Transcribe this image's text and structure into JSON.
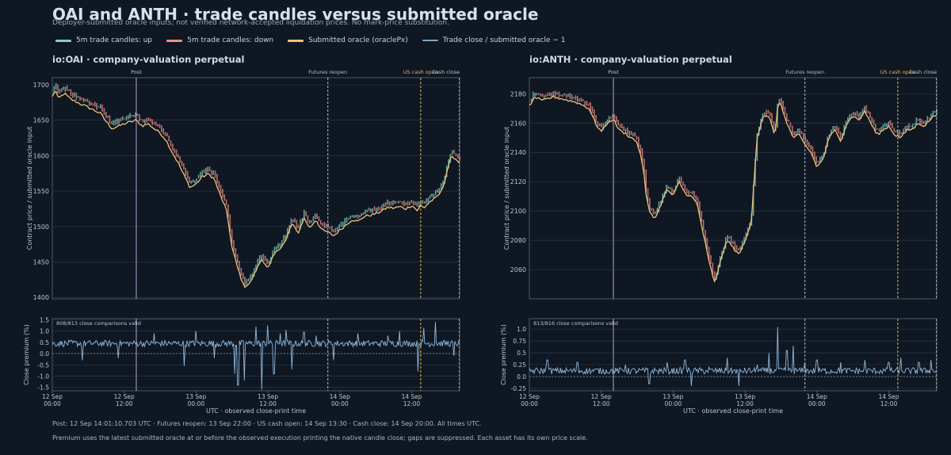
{
  "title": "OAI and ANTH · trade candles versus submitted oracle",
  "subtitle": "Deployer-submitted oracle inputs; not verified network-accepted liquidation prices. No mark-price substitution.",
  "legend": [
    {
      "label": "5m trade candles: up",
      "color": "#7fd1c3"
    },
    {
      "label": "5m trade candles: down",
      "color": "#f08d8a"
    },
    {
      "label": "Submitted oracle (oraclePx)",
      "color": "#f2c27b"
    },
    {
      "label": "Trade close / submitted oracle − 1",
      "color": "#7ea6c9"
    }
  ],
  "colors": {
    "background": "#0f1722",
    "grid": "#25384d",
    "axis": "#5b6b7b",
    "post_line": "#b7a3d6",
    "futures_line": "#a7c0d8",
    "cash_open_line": "#e0b65e",
    "cash_close_line": "#8fa0b0",
    "premium": "#8fb8dc"
  },
  "panels": [
    {
      "title": "io:OAI · company-valuation perpetual",
      "valid_note": "808/813 close comparisons valid"
    },
    {
      "title": "io:ANTH · company-valuation perpetual",
      "valid_note": "813/816 close comparisons valid"
    }
  ],
  "events": {
    "post": "Post",
    "futures": "Futures reopen",
    "cash_open": "US cash open",
    "cash_close": "Cash close"
  },
  "axes": {
    "price_ylabel": "Contract price / submitted oracle input",
    "premium_ylabel": "Close premium (%)",
    "xlabel": "UTC · observed close-print time",
    "x_ticks": [
      "12 Sep\n00:00",
      "12 Sep\n12:00",
      "13 Sep\n00:00",
      "13 Sep\n12:00",
      "14 Sep\n00:00",
      "14 Sep\n12:00"
    ]
  },
  "footer": {
    "line1": "Post: 12 Sep 14:01:10.703 UTC · Futures reopen: 13 Sep 22:00 · US cash open: 14 Sep 13:30 · Cash close: 14 Sep 20:00. All times UTC.",
    "line2": "Premium uses the latest submitted oracle at or before the observed execution printing the native candle close; gaps are suppressed. Each asset has its own price scale."
  },
  "chart_data": [
    {
      "type": "line",
      "asset": "io:OAI",
      "x_unit": "hours since 12 Sep 00:00 UTC",
      "xlim": [
        0,
        68
      ],
      "events_x": {
        "post": 14.02,
        "futures": 46.0,
        "cash_open": 61.5,
        "cash_close": 68.0
      },
      "price": {
        "ylim": [
          1398,
          1710
        ],
        "yticks": [
          1400,
          1450,
          1500,
          1550,
          1600,
          1650,
          1700
        ],
        "oracle": [
          [
            0,
            1683
          ],
          [
            0.5,
            1693
          ],
          [
            1,
            1680
          ],
          [
            2,
            1688
          ],
          [
            3,
            1680
          ],
          [
            4,
            1676
          ],
          [
            6,
            1668
          ],
          [
            8,
            1660
          ],
          [
            9,
            1648
          ],
          [
            10,
            1638
          ],
          [
            12,
            1645
          ],
          [
            14,
            1650
          ],
          [
            15,
            1642
          ],
          [
            16,
            1645
          ],
          [
            17,
            1638
          ],
          [
            18,
            1632
          ],
          [
            19,
            1622
          ],
          [
            20,
            1605
          ],
          [
            21,
            1590
          ],
          [
            22,
            1572
          ],
          [
            23,
            1555
          ],
          [
            24,
            1560
          ],
          [
            25,
            1570
          ],
          [
            26,
            1574
          ],
          [
            27,
            1568
          ],
          [
            28,
            1545
          ],
          [
            29,
            1525
          ],
          [
            29.5,
            1500
          ],
          [
            30,
            1470
          ],
          [
            31,
            1440
          ],
          [
            32,
            1415
          ],
          [
            33,
            1420
          ],
          [
            34,
            1438
          ],
          [
            35,
            1455
          ],
          [
            36,
            1440
          ],
          [
            37,
            1460
          ],
          [
            38,
            1470
          ],
          [
            39,
            1480
          ],
          [
            40,
            1505
          ],
          [
            41,
            1490
          ],
          [
            42,
            1512
          ],
          [
            43,
            1498
          ],
          [
            44,
            1510
          ],
          [
            45,
            1495
          ],
          [
            46,
            1492
          ],
          [
            47,
            1487
          ],
          [
            48,
            1495
          ],
          [
            49,
            1502
          ],
          [
            50,
            1510
          ],
          [
            51,
            1507
          ],
          [
            52,
            1514
          ],
          [
            54,
            1518
          ],
          [
            55,
            1522
          ],
          [
            56,
            1527
          ],
          [
            57,
            1526
          ],
          [
            58,
            1528
          ],
          [
            59,
            1525
          ],
          [
            60,
            1530
          ],
          [
            61,
            1522
          ],
          [
            61.5,
            1530
          ],
          [
            62,
            1526
          ],
          [
            63,
            1535
          ],
          [
            64,
            1540
          ],
          [
            65,
            1550
          ],
          [
            65.5,
            1565
          ],
          [
            66,
            1582
          ],
          [
            66.5,
            1596
          ],
          [
            67,
            1598
          ],
          [
            68,
            1590
          ]
        ],
        "trade_close_offset_pct": 0.45
      },
      "premium": {
        "ylim": [
          -1.65,
          1.55
        ],
        "yticks": [
          -1.5,
          -1.0,
          -0.5,
          0.0,
          0.5,
          1.0,
          1.5
        ],
        "baseline": 0.45,
        "spikes": [
          [
            5,
            -0.3
          ],
          [
            11,
            -0.2
          ],
          [
            17,
            0.9
          ],
          [
            22,
            -0.55
          ],
          [
            24,
            1.0
          ],
          [
            27,
            -0.2
          ],
          [
            30.5,
            -0.9
          ],
          [
            31,
            -1.4
          ],
          [
            32,
            -1.2
          ],
          [
            34,
            1.2
          ],
          [
            35,
            -1.6
          ],
          [
            36,
            1.25
          ],
          [
            37,
            -0.9
          ],
          [
            38,
            0.9
          ],
          [
            39,
            1.05
          ],
          [
            40,
            -0.7
          ],
          [
            42,
            0.95
          ],
          [
            44,
            0.8
          ],
          [
            47,
            -0.3
          ],
          [
            51,
            0.9
          ],
          [
            56,
            0.8
          ],
          [
            58,
            1.0
          ],
          [
            61,
            -0.8
          ],
          [
            62,
            1.15
          ],
          [
            64,
            1.4
          ],
          [
            67,
            -0.1
          ]
        ]
      }
    },
    {
      "type": "line",
      "asset": "io:ANTH",
      "x_unit": "hours since 12 Sep 00:00 UTC",
      "xlim": [
        0,
        68
      ],
      "events_x": {
        "post": 14.02,
        "futures": 46.0,
        "cash_open": 61.5,
        "cash_close": 68.0
      },
      "price": {
        "ylim": [
          2040,
          2191
        ],
        "yticks": [
          2060,
          2080,
          2100,
          2120,
          2140,
          2160,
          2180
        ],
        "oracle": [
          [
            0,
            2172
          ],
          [
            1,
            2178
          ],
          [
            2,
            2175
          ],
          [
            4,
            2178
          ],
          [
            6,
            2176
          ],
          [
            8,
            2174
          ],
          [
            10,
            2170
          ],
          [
            11,
            2160
          ],
          [
            12,
            2154
          ],
          [
            13,
            2160
          ],
          [
            14,
            2163
          ],
          [
            15,
            2155
          ],
          [
            16,
            2153
          ],
          [
            17,
            2150
          ],
          [
            18,
            2147
          ],
          [
            19,
            2130
          ],
          [
            19.5,
            2110
          ],
          [
            20,
            2100
          ],
          [
            21,
            2095
          ],
          [
            22,
            2105
          ],
          [
            23,
            2115
          ],
          [
            24,
            2110
          ],
          [
            25,
            2120
          ],
          [
            26,
            2112
          ],
          [
            27,
            2110
          ],
          [
            28,
            2105
          ],
          [
            29,
            2085
          ],
          [
            30,
            2065
          ],
          [
            31,
            2050
          ],
          [
            32,
            2068
          ],
          [
            33,
            2080
          ],
          [
            34,
            2075
          ],
          [
            35,
            2070
          ],
          [
            36,
            2080
          ],
          [
            37,
            2090
          ],
          [
            37.5,
            2120
          ],
          [
            38,
            2150
          ],
          [
            39,
            2165
          ],
          [
            40,
            2165
          ],
          [
            41,
            2150
          ],
          [
            41.5,
            2175
          ],
          [
            42,
            2172
          ],
          [
            43,
            2160
          ],
          [
            44,
            2150
          ],
          [
            45,
            2152
          ],
          [
            46,
            2145
          ],
          [
            47,
            2140
          ],
          [
            48,
            2130
          ],
          [
            49,
            2135
          ],
          [
            50,
            2150
          ],
          [
            51,
            2155
          ],
          [
            52,
            2148
          ],
          [
            53,
            2160
          ],
          [
            54,
            2165
          ],
          [
            55,
            2162
          ],
          [
            56,
            2168
          ],
          [
            57,
            2160
          ],
          [
            58,
            2152
          ],
          [
            59,
            2155
          ],
          [
            60,
            2158
          ],
          [
            61,
            2152
          ],
          [
            62,
            2150
          ],
          [
            63,
            2155
          ],
          [
            64,
            2156
          ],
          [
            65,
            2160
          ],
          [
            66,
            2158
          ],
          [
            67,
            2163
          ],
          [
            68,
            2166
          ]
        ],
        "trade_close_offset_pct": 0.12
      },
      "premium": {
        "ylim": [
          -0.3,
          1.22
        ],
        "yticks": [
          -0.25,
          0.0,
          0.25,
          0.5,
          0.75,
          1.0
        ],
        "baseline": 0.12,
        "spikes": [
          [
            3,
            0.35
          ],
          [
            8,
            0.3
          ],
          [
            16,
            0.25
          ],
          [
            20,
            -0.15
          ],
          [
            23,
            0.3
          ],
          [
            26,
            0.35
          ],
          [
            27,
            -0.2
          ],
          [
            30,
            0.2
          ],
          [
            33,
            0.4
          ],
          [
            35,
            -0.2
          ],
          [
            38,
            0.25
          ],
          [
            40,
            0.5
          ],
          [
            41.5,
            1.05
          ],
          [
            43,
            0.55
          ],
          [
            44,
            0.65
          ],
          [
            46,
            0.3
          ],
          [
            48,
            0.35
          ],
          [
            52,
            0.3
          ],
          [
            56,
            0.35
          ],
          [
            60,
            0.3
          ],
          [
            62,
            0.4
          ],
          [
            65,
            0.3
          ],
          [
            67,
            0.35
          ]
        ]
      }
    }
  ]
}
